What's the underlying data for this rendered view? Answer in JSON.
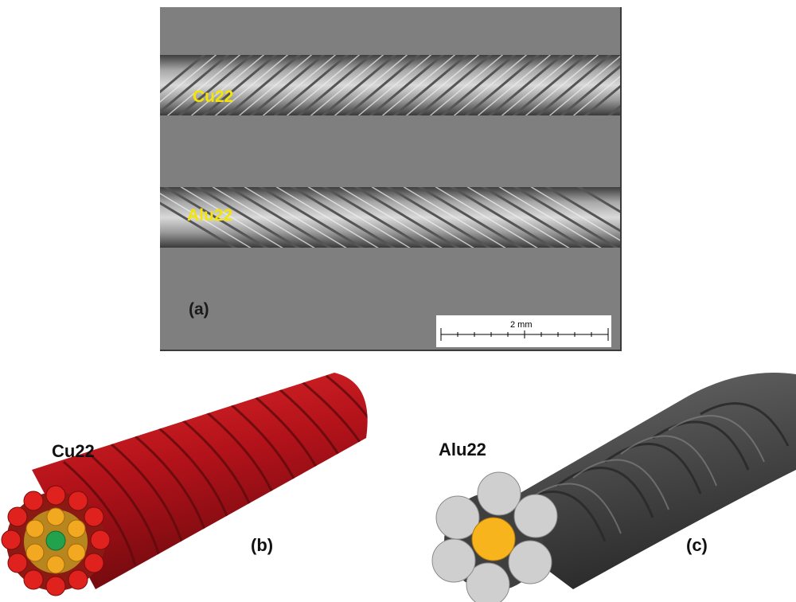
{
  "photo": {
    "label_top_wire": "Cu22",
    "label_bottom_wire": "Alu22",
    "panel_label": "(a)",
    "scale_bar_text": "2 mm"
  },
  "model_b": {
    "label": "Cu22",
    "panel_label": "(b)"
  },
  "model_c": {
    "label": "Alu22",
    "panel_label": "(c)"
  },
  "colors": {
    "photo_bg": "#7f7f7f",
    "label_yellow": "#f4e600",
    "cu_strand": "#c0161b",
    "cu_middle": "#f2a820",
    "cu_core": "#23a24d",
    "alu_strand": "#cfcfcf",
    "alu_body": "#4d4d4d",
    "alu_core": "#f8b41d"
  }
}
